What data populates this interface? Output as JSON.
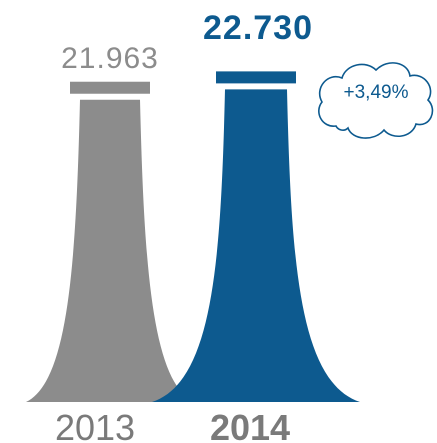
{
  "chart_data": {
    "type": "bar",
    "categories": [
      "2013",
      "2014"
    ],
    "values": [
      21963,
      22730
    ],
    "value_labels": [
      "21.963",
      "22.730"
    ],
    "highlight_index": 1,
    "change_label": "+3,49%",
    "colors": {
      "past": "#8c8c8c",
      "current": "#0d5a8f",
      "cloud_stroke": "#0d5a8f"
    },
    "ylim": [
      0,
      23500
    ],
    "grid": false,
    "legend": "none"
  }
}
